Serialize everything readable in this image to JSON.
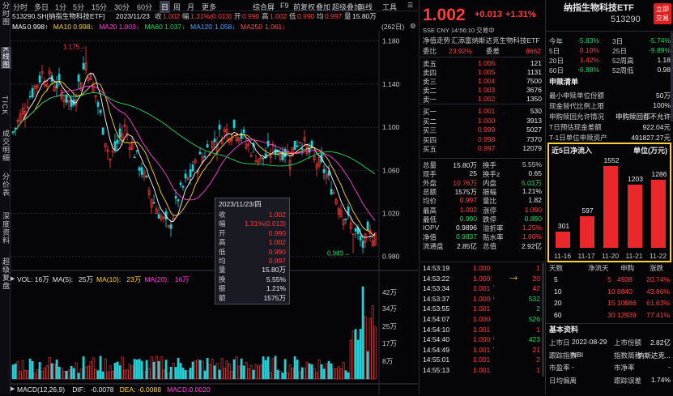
{
  "sidebar": [
    "分时图",
    "K线图",
    "TICK",
    "成交明细",
    "分价表",
    "深度资料",
    "超级复盘"
  ],
  "topbar": {
    "periods": [
      "分时",
      "多日",
      "1分",
      "5分",
      "15分",
      "30分",
      "60分",
      "日",
      "周",
      "月",
      "更多"
    ],
    "selected": "日",
    "tools": [
      "综合屏",
      "F9",
      "前复权",
      "叠加",
      "超级叠加",
      "画线",
      "工具"
    ],
    "menu_icon": "menu-icon"
  },
  "info": {
    "code": "513290.SH[纳指生物科技ETF]",
    "date": "2023/11/23",
    "items": [
      [
        "收",
        "1.002"
      ],
      [
        "幅",
        "1.31%(0.013)"
      ],
      [
        "开",
        "0.990"
      ],
      [
        "高",
        "1.002"
      ],
      [
        "低",
        "0.990"
      ],
      [
        "均",
        "0.997"
      ],
      [
        "量",
        "15.80万"
      ]
    ]
  },
  "ma": [
    {
      "label": "MA5",
      "value": "0.998↑",
      "color": "#ffffff"
    },
    {
      "label": "MA10",
      "value": "0.998↓",
      "color": "#ffd23c"
    },
    {
      "label": "MA20",
      "value": "1.003↓",
      "color": "#ff3fd8"
    },
    {
      "label": "MA60",
      "value": "1.037↓",
      "color": "#1ed760"
    },
    {
      "label": "MA120",
      "value": "1.058↓",
      "color": "#4da3ff"
    },
    {
      "label": "MA250",
      "value": "1.061↓",
      "color": "#ff5050"
    }
  ],
  "bars_count": "(262日)",
  "chart_data": {
    "type": "candlestick",
    "title": "513290.SH[纳指生物科技ETF]",
    "y_ticks": [
      "1.180",
      "1.140",
      "1.100",
      "1.060",
      "1.020",
      "0.980"
    ],
    "ylim": [
      0.97,
      1.185
    ],
    "high_label": "1.175",
    "low_label": "0.983",
    "close": 1.002,
    "vol_ticks": [
      "42万",
      "34万",
      "25万",
      "17万",
      "8万"
    ],
    "vol_line": {
      "items": [
        [
          "VOL:",
          "16万"
        ],
        [
          "MA(5):",
          "25万"
        ],
        [
          "MA(10):",
          "23万"
        ],
        [
          "MA(20):",
          "16万"
        ]
      ]
    },
    "macd_line": {
      "items": [
        [
          "MACD(12,26,9)",
          ""
        ],
        [
          "DIF:",
          "-0.0078"
        ],
        [
          "DEA:",
          "-0.0088"
        ],
        [
          "MACD:",
          "0.0020"
        ]
      ]
    }
  },
  "tooltip": {
    "date": "2023/11/23/四",
    "rows": [
      [
        "收",
        "1.002"
      ],
      [
        "幅",
        "1.31%(0.013)"
      ],
      [
        "开",
        "0.990"
      ],
      [
        "高",
        "1.002"
      ],
      [
        "低",
        "0.990"
      ],
      [
        "均",
        "0.997"
      ],
      [
        "量",
        "15.80万"
      ],
      [
        "换",
        "5.55%"
      ],
      [
        "振",
        "1.21%"
      ],
      [
        "额",
        "1575万"
      ]
    ]
  },
  "quote": {
    "price": "1.002",
    "change": "+0.013",
    "pct": "+1.31%",
    "market": "SSE CNY 14:56:10 交易中",
    "name_line": "净值走势",
    "fund_name": "汇添富纳斯达克生物科技ETF",
    "webi_label": "委比",
    "webi": "23.92%",
    "weicha_label": "委差",
    "weicha": "8662"
  },
  "asks": [
    [
      "卖五",
      "1.006",
      "121"
    ],
    [
      "卖四",
      "1.005",
      "1131"
    ],
    [
      "卖三",
      "1.004",
      "7500"
    ],
    [
      "卖二",
      "1.003",
      "3676"
    ],
    [
      "卖一",
      "1.002",
      "1350"
    ]
  ],
  "bids": [
    [
      "买一",
      "1.001",
      "530"
    ],
    [
      "买二",
      "1.000",
      "3913"
    ],
    [
      "买三",
      "0.999",
      "5027"
    ],
    [
      "买四",
      "0.998",
      "7370"
    ],
    [
      "买五",
      "0.997",
      "12079"
    ]
  ],
  "stats": [
    [
      "总量",
      "15.80万",
      "换手",
      "5.55%"
    ],
    [
      "现手",
      "25",
      "换手z",
      "0.65"
    ],
    [
      "外盘",
      "10.76万",
      "内盘",
      "5.03万"
    ],
    [
      "总额",
      "1575万",
      "振幅",
      "1.21%"
    ],
    [
      "均价",
      "0.997",
      "量比",
      "1.82"
    ],
    [
      "最高",
      "1.002",
      "涨停",
      "1.090"
    ],
    [
      "最低",
      "0.990",
      "跌停",
      "0.890"
    ],
    [
      "IOPV",
      "0.9896",
      "溢折率",
      "1.25%"
    ],
    [
      "净值",
      "0.9837",
      "贴水率",
      "1.86%"
    ],
    [
      "流通盘",
      "2.85亿",
      "总值",
      "2.92亿"
    ]
  ],
  "ticks": [
    [
      "14:53:19",
      "1.000",
      "1",
      ""
    ],
    [
      "14:53:22",
      "1.000",
      "20",
      ""
    ],
    [
      "14:53:34",
      "1.001",
      "42",
      "up"
    ],
    [
      "14:53:37",
      "1.000",
      "532",
      "dn"
    ],
    [
      "14:53:55",
      "1.001",
      "2",
      ""
    ],
    [
      "14:54:07",
      "1.000",
      "526",
      ""
    ],
    [
      "14:54:10",
      "1.001",
      "1",
      ""
    ],
    [
      "14:54:40",
      "1.000",
      "423",
      "dn"
    ],
    [
      "14:54:49",
      "1.001",
      "21",
      "up"
    ],
    [
      "14:55:01",
      "1.001",
      "2",
      ""
    ],
    [
      "14:55:13",
      "1.001",
      "1",
      ""
    ]
  ],
  "far": {
    "name": "纳指生物科技ETF",
    "code": "513290",
    "live_btn": "立即交易",
    "perf": [
      [
        "今年",
        "-5.83%",
        "3日",
        "-5.74%"
      ],
      [
        "5日",
        "0.10%",
        "25日",
        "-9.89%"
      ],
      [
        "20日",
        "1.42%",
        "52周高",
        "1.18"
      ],
      [
        "60日",
        "-6.88%",
        "52周低",
        "0.98"
      ]
    ],
    "apply_title": "申赎清单",
    "apply": [
      [
        "最小申赎单位份额",
        "50万"
      ],
      [
        "现金替代比例上限",
        "100%"
      ],
      [
        "申购赎回允许情况",
        "申购赎回都不允许"
      ],
      [
        "T日预估现金差额",
        "922.04元"
      ],
      [
        "T-1日单位申赎资产",
        "491827.27元"
      ]
    ],
    "flow_title": "近5日净流入",
    "flow_unit": "单位(万元)",
    "flow": [
      {
        "date": "11-16",
        "value": 301
      },
      {
        "date": "11-17",
        "value": 597
      },
      {
        "date": "11-20",
        "value": 1552
      },
      {
        "date": "11-21",
        "value": 1203
      },
      {
        "date": "11-22",
        "value": 1286
      }
    ],
    "flow_table_head": [
      "天数",
      "净流天",
      "申购",
      "涨跌"
    ],
    "flow_table": [
      [
        "5",
        "5",
        "4938",
        "20.74%"
      ],
      [
        "10",
        "10",
        "8840",
        "43.86%"
      ],
      [
        "20",
        "15",
        "10886",
        "61.63%"
      ],
      [
        "60",
        "30",
        "12939",
        "77.41%"
      ]
    ],
    "basic_title": "基本资料",
    "basic": [
      [
        "上市日",
        "2022-08-29",
        "上市份额",
        "2.82亿"
      ],
      [
        "跟踪指数",
        "NBI",
        "指数简称",
        "纳斯达克..."
      ],
      [
        "市盈率",
        "-",
        "市净率",
        "-"
      ],
      [
        "日均偏离",
        "-",
        "跟踪误差",
        "1.74%"
      ]
    ]
  }
}
